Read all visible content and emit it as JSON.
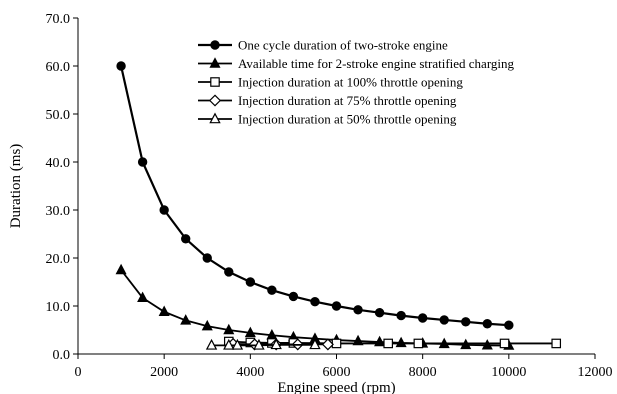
{
  "chart_data": {
    "type": "line",
    "title": "",
    "xlabel": "Engine speed (rpm)",
    "ylabel": "Duration (ms)",
    "xlim": [
      0,
      12000
    ],
    "ylim": [
      0,
      70
    ],
    "xticks": [
      0,
      2000,
      4000,
      6000,
      8000,
      10000,
      12000
    ],
    "yticks": [
      0,
      10,
      20,
      30,
      40,
      50,
      60,
      70
    ],
    "xtick_labels": [
      "0",
      "2000",
      "4000",
      "6000",
      "8000",
      "10000",
      "12000"
    ],
    "ytick_labels": [
      "0.0",
      "10.0",
      "20.0",
      "30.0",
      "40.0",
      "50.0",
      "60.0",
      "70.0"
    ],
    "grid": false,
    "legend_position": "top-right",
    "series": [
      {
        "name": "One cycle duration of two-stroke engine",
        "marker": "filled-circle",
        "x": [
          1000,
          1500,
          2000,
          2500,
          3000,
          3500,
          4000,
          4500,
          5000,
          5500,
          6000,
          6500,
          7000,
          7500,
          8000,
          8500,
          9000,
          9500,
          10000
        ],
        "y": [
          60.0,
          40.0,
          30.0,
          24.0,
          20.0,
          17.1,
          15.0,
          13.3,
          12.0,
          10.9,
          10.0,
          9.2,
          8.6,
          8.0,
          7.5,
          7.1,
          6.7,
          6.3,
          6.0
        ]
      },
      {
        "name": "Available time  for 2-stroke engine stratified charging",
        "marker": "filled-triangle",
        "x": [
          1000,
          1500,
          2000,
          2500,
          3000,
          3500,
          4000,
          4500,
          5000,
          5500,
          6000,
          6500,
          7000,
          7500,
          8000,
          8500,
          9000,
          9500,
          10000
        ],
        "y": [
          17.5,
          11.7,
          8.8,
          7.0,
          5.8,
          5.0,
          4.4,
          3.9,
          3.5,
          3.2,
          2.9,
          2.7,
          2.5,
          2.3,
          2.2,
          2.1,
          1.9,
          1.8,
          1.75
        ]
      },
      {
        "name": "Injection duration at 100% throttle opening",
        "marker": "open-square",
        "x": [
          3500,
          4000,
          4500,
          5000,
          6000,
          7200,
          7900,
          9900,
          11100
        ],
        "y": [
          2.6,
          2.4,
          2.3,
          2.3,
          2.2,
          2.2,
          2.2,
          2.2,
          2.2
        ]
      },
      {
        "name": "Injection duration at 75% throttle opening",
        "marker": "open-diamond",
        "x": [
          3600,
          4100,
          4600,
          5100,
          5800
        ],
        "y": [
          2.1,
          2.0,
          2.0,
          2.0,
          2.0
        ]
      },
      {
        "name": "Injection duration at 50% throttle opening",
        "marker": "open-triangle",
        "x": [
          3100,
          3500,
          3700,
          4200,
          4600,
          5500
        ],
        "y": [
          1.8,
          1.8,
          1.8,
          1.8,
          1.9,
          1.9
        ]
      }
    ]
  }
}
